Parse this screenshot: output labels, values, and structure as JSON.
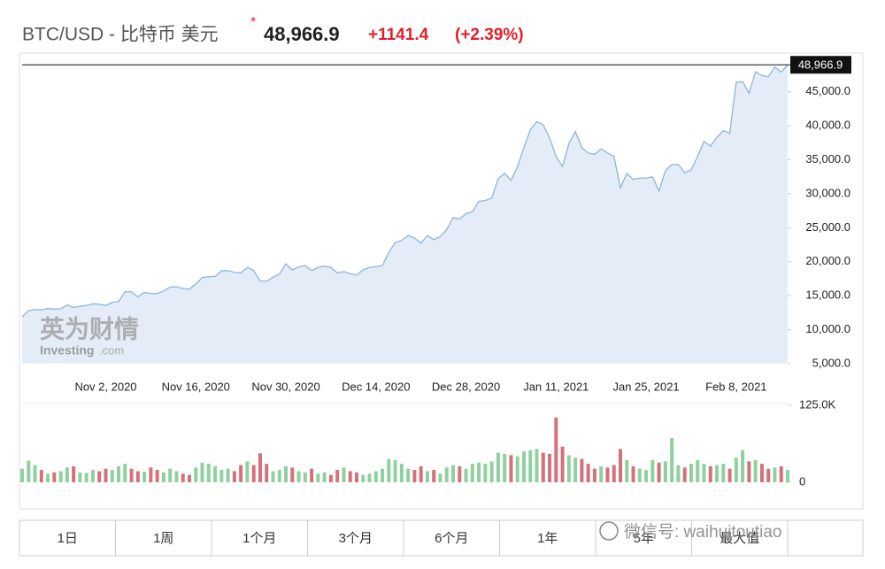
{
  "header": {
    "symbol": "BTC/USD - 比特币 美元",
    "price": "48,966.9",
    "change": "+1141.4",
    "change_pct": "(+2.39%)"
  },
  "watermark": {
    "cn": "英为财情",
    "en": "Investing",
    "en_suffix": ".com",
    "wechat": "微信号: waihuitoutiao"
  },
  "buttons": [
    "1日",
    "1周",
    "1个月",
    "3个月",
    "6个月",
    "1年",
    "5年",
    "最大值"
  ],
  "chart_data": [
    {
      "type": "line",
      "color": "#8db4dc",
      "fill": "#e4edf7",
      "x": [
        "Oct 20, 2020",
        "Oct 21, 2020",
        "Oct 22, 2020",
        "Oct 23, 2020",
        "Oct 24, 2020",
        "Oct 25, 2020",
        "Oct 26, 2020",
        "Oct 27, 2020",
        "Oct 28, 2020",
        "Oct 29, 2020",
        "Oct 30, 2020",
        "Oct 31, 2020",
        "Nov 1, 2020",
        "Nov 2, 2020",
        "Nov 3, 2020",
        "Nov 4, 2020",
        "Nov 5, 2020",
        "Nov 6, 2020",
        "Nov 7, 2020",
        "Nov 8, 2020",
        "Nov 9, 2020",
        "Nov 10, 2020",
        "Nov 11, 2020",
        "Nov 12, 2020",
        "Nov 13, 2020",
        "Nov 14, 2020",
        "Nov 15, 2020",
        "Nov 16, 2020",
        "Nov 17, 2020",
        "Nov 18, 2020",
        "Nov 19, 2020",
        "Nov 20, 2020",
        "Nov 21, 2020",
        "Nov 22, 2020",
        "Nov 23, 2020",
        "Nov 24, 2020",
        "Nov 25, 2020",
        "Nov 26, 2020",
        "Nov 27, 2020",
        "Nov 28, 2020",
        "Nov 29, 2020",
        "Nov 30, 2020",
        "Dec 1, 2020",
        "Dec 2, 2020",
        "Dec 3, 2020",
        "Dec 4, 2020",
        "Dec 5, 2020",
        "Dec 6, 2020",
        "Dec 7, 2020",
        "Dec 8, 2020",
        "Dec 9, 2020",
        "Dec 10, 2020",
        "Dec 11, 2020",
        "Dec 12, 2020",
        "Dec 13, 2020",
        "Dec 14, 2020",
        "Dec 15, 2020",
        "Dec 16, 2020",
        "Dec 17, 2020",
        "Dec 18, 2020",
        "Dec 19, 2020",
        "Dec 20, 2020",
        "Dec 21, 2020",
        "Dec 22, 2020",
        "Dec 23, 2020",
        "Dec 24, 2020",
        "Dec 25, 2020",
        "Dec 26, 2020",
        "Dec 27, 2020",
        "Dec 28, 2020",
        "Dec 29, 2020",
        "Dec 30, 2020",
        "Dec 31, 2020",
        "Jan 1, 2021",
        "Jan 2, 2021",
        "Jan 3, 2021",
        "Jan 4, 2021",
        "Jan 5, 2021",
        "Jan 6, 2021",
        "Jan 7, 2021",
        "Jan 8, 2021",
        "Jan 9, 2021",
        "Jan 10, 2021",
        "Jan 11, 2021",
        "Jan 12, 2021",
        "Jan 13, 2021",
        "Jan 14, 2021",
        "Jan 15, 2021",
        "Jan 16, 2021",
        "Jan 17, 2021",
        "Jan 18, 2021",
        "Jan 19, 2021",
        "Jan 20, 2021",
        "Jan 21, 2021",
        "Jan 22, 2021",
        "Jan 23, 2021",
        "Jan 24, 2021",
        "Jan 25, 2021",
        "Jan 26, 2021",
        "Jan 27, 2021",
        "Jan 28, 2021",
        "Jan 29, 2021",
        "Jan 30, 2021",
        "Jan 31, 2021",
        "Feb 1, 2021",
        "Feb 2, 2021",
        "Feb 3, 2021",
        "Feb 4, 2021",
        "Feb 5, 2021",
        "Feb 6, 2021",
        "Feb 7, 2021",
        "Feb 8, 2021",
        "Feb 9, 2021",
        "Feb 10, 2021",
        "Feb 11, 2021",
        "Feb 12, 2021",
        "Feb 13, 2021",
        "Feb 14, 2021",
        "Feb 15, 2021",
        "Feb 16, 2021"
      ],
      "values": [
        11900,
        12800,
        12970,
        12930,
        13110,
        13030,
        13070,
        13650,
        13270,
        13450,
        13560,
        13800,
        13760,
        13550,
        14030,
        14150,
        15590,
        15580,
        14830,
        15480,
        15330,
        15310,
        15700,
        16280,
        16320,
        16070,
        15960,
        16730,
        17680,
        17800,
        17820,
        18680,
        18720,
        18420,
        18370,
        19160,
        18720,
        17150,
        17140,
        17720,
        18180,
        19700,
        18800,
        19220,
        19450,
        18700,
        19150,
        19360,
        19170,
        18320,
        18550,
        18250,
        18040,
        18800,
        19170,
        19270,
        19440,
        21380,
        22850,
        23130,
        23870,
        23480,
        22750,
        23830,
        23250,
        23720,
        24700,
        26490,
        26280,
        27080,
        27360,
        28890,
        29000,
        29370,
        32200,
        33000,
        31970,
        33950,
        36800,
        39400,
        40600,
        40150,
        38200,
        35500,
        34000,
        37400,
        39150,
        36800,
        36000,
        35800,
        36600,
        36000,
        35500,
        30850,
        33000,
        32100,
        32300,
        32300,
        32500,
        30400,
        33400,
        34300,
        34300,
        33100,
        33500,
        35500,
        37700,
        37000,
        38300,
        39300,
        38900,
        46400,
        46500,
        44800,
        47950,
        47400,
        47200,
        48650,
        47900,
        48966.9
      ],
      "xticks": [
        "Nov 2, 2020",
        "Nov 16, 2020",
        "Nov 30, 2020",
        "Dec 14, 2020",
        "Dec 28, 2020",
        "Jan 11, 2021",
        "Jan 25, 2021",
        "Feb 8, 2021"
      ],
      "ylim": [
        5000,
        50300
      ],
      "yticks": [
        {
          "value": 5000,
          "label": "5,000.0"
        },
        {
          "value": 10000,
          "label": "10,000.0"
        },
        {
          "value": 15000,
          "label": "15,000.0"
        },
        {
          "value": 20000,
          "label": "20,000.0"
        },
        {
          "value": 25000,
          "label": "25,000.0"
        },
        {
          "value": 30000,
          "label": "30,000.0"
        },
        {
          "value": 35000,
          "label": "35,000.0"
        },
        {
          "value": 40000,
          "label": "40,000.0"
        },
        {
          "value": 45000,
          "label": "45,000.0"
        }
      ],
      "annotations": [
        {
          "value": 48966.9,
          "label": "48,966.9"
        }
      ]
    },
    {
      "type": "bar",
      "up_color": "#8fd19e",
      "down_color": "#d6707a",
      "values": [
        22,
        35,
        28,
        20,
        14,
        16,
        18,
        24,
        26,
        16,
        15,
        20,
        18,
        22,
        20,
        26,
        30,
        22,
        18,
        17,
        24,
        20,
        16,
        22,
        18,
        14,
        12,
        24,
        32,
        30,
        26,
        20,
        22,
        18,
        28,
        34,
        28,
        47,
        30,
        18,
        20,
        26,
        24,
        18,
        16,
        22,
        14,
        16,
        12,
        20,
        24,
        18,
        16,
        12,
        14,
        18,
        22,
        38,
        36,
        30,
        22,
        20,
        26,
        18,
        20,
        14,
        24,
        28,
        26,
        22,
        30,
        32,
        30,
        34,
        48,
        46,
        44,
        42,
        50,
        52,
        54,
        48,
        46,
        105,
        58,
        44,
        40,
        38,
        30,
        22,
        26,
        24,
        28,
        54,
        36,
        26,
        22,
        20,
        36,
        32,
        34,
        72,
        28,
        24,
        30,
        36,
        30,
        26,
        28,
        30,
        22,
        40,
        52,
        34,
        36,
        30,
        22,
        24,
        26,
        20
      ],
      "ylim": [
        0,
        125
      ],
      "yticks": [
        0,
        {
          "value": 125,
          "label": "125.0K"
        }
      ]
    }
  ]
}
